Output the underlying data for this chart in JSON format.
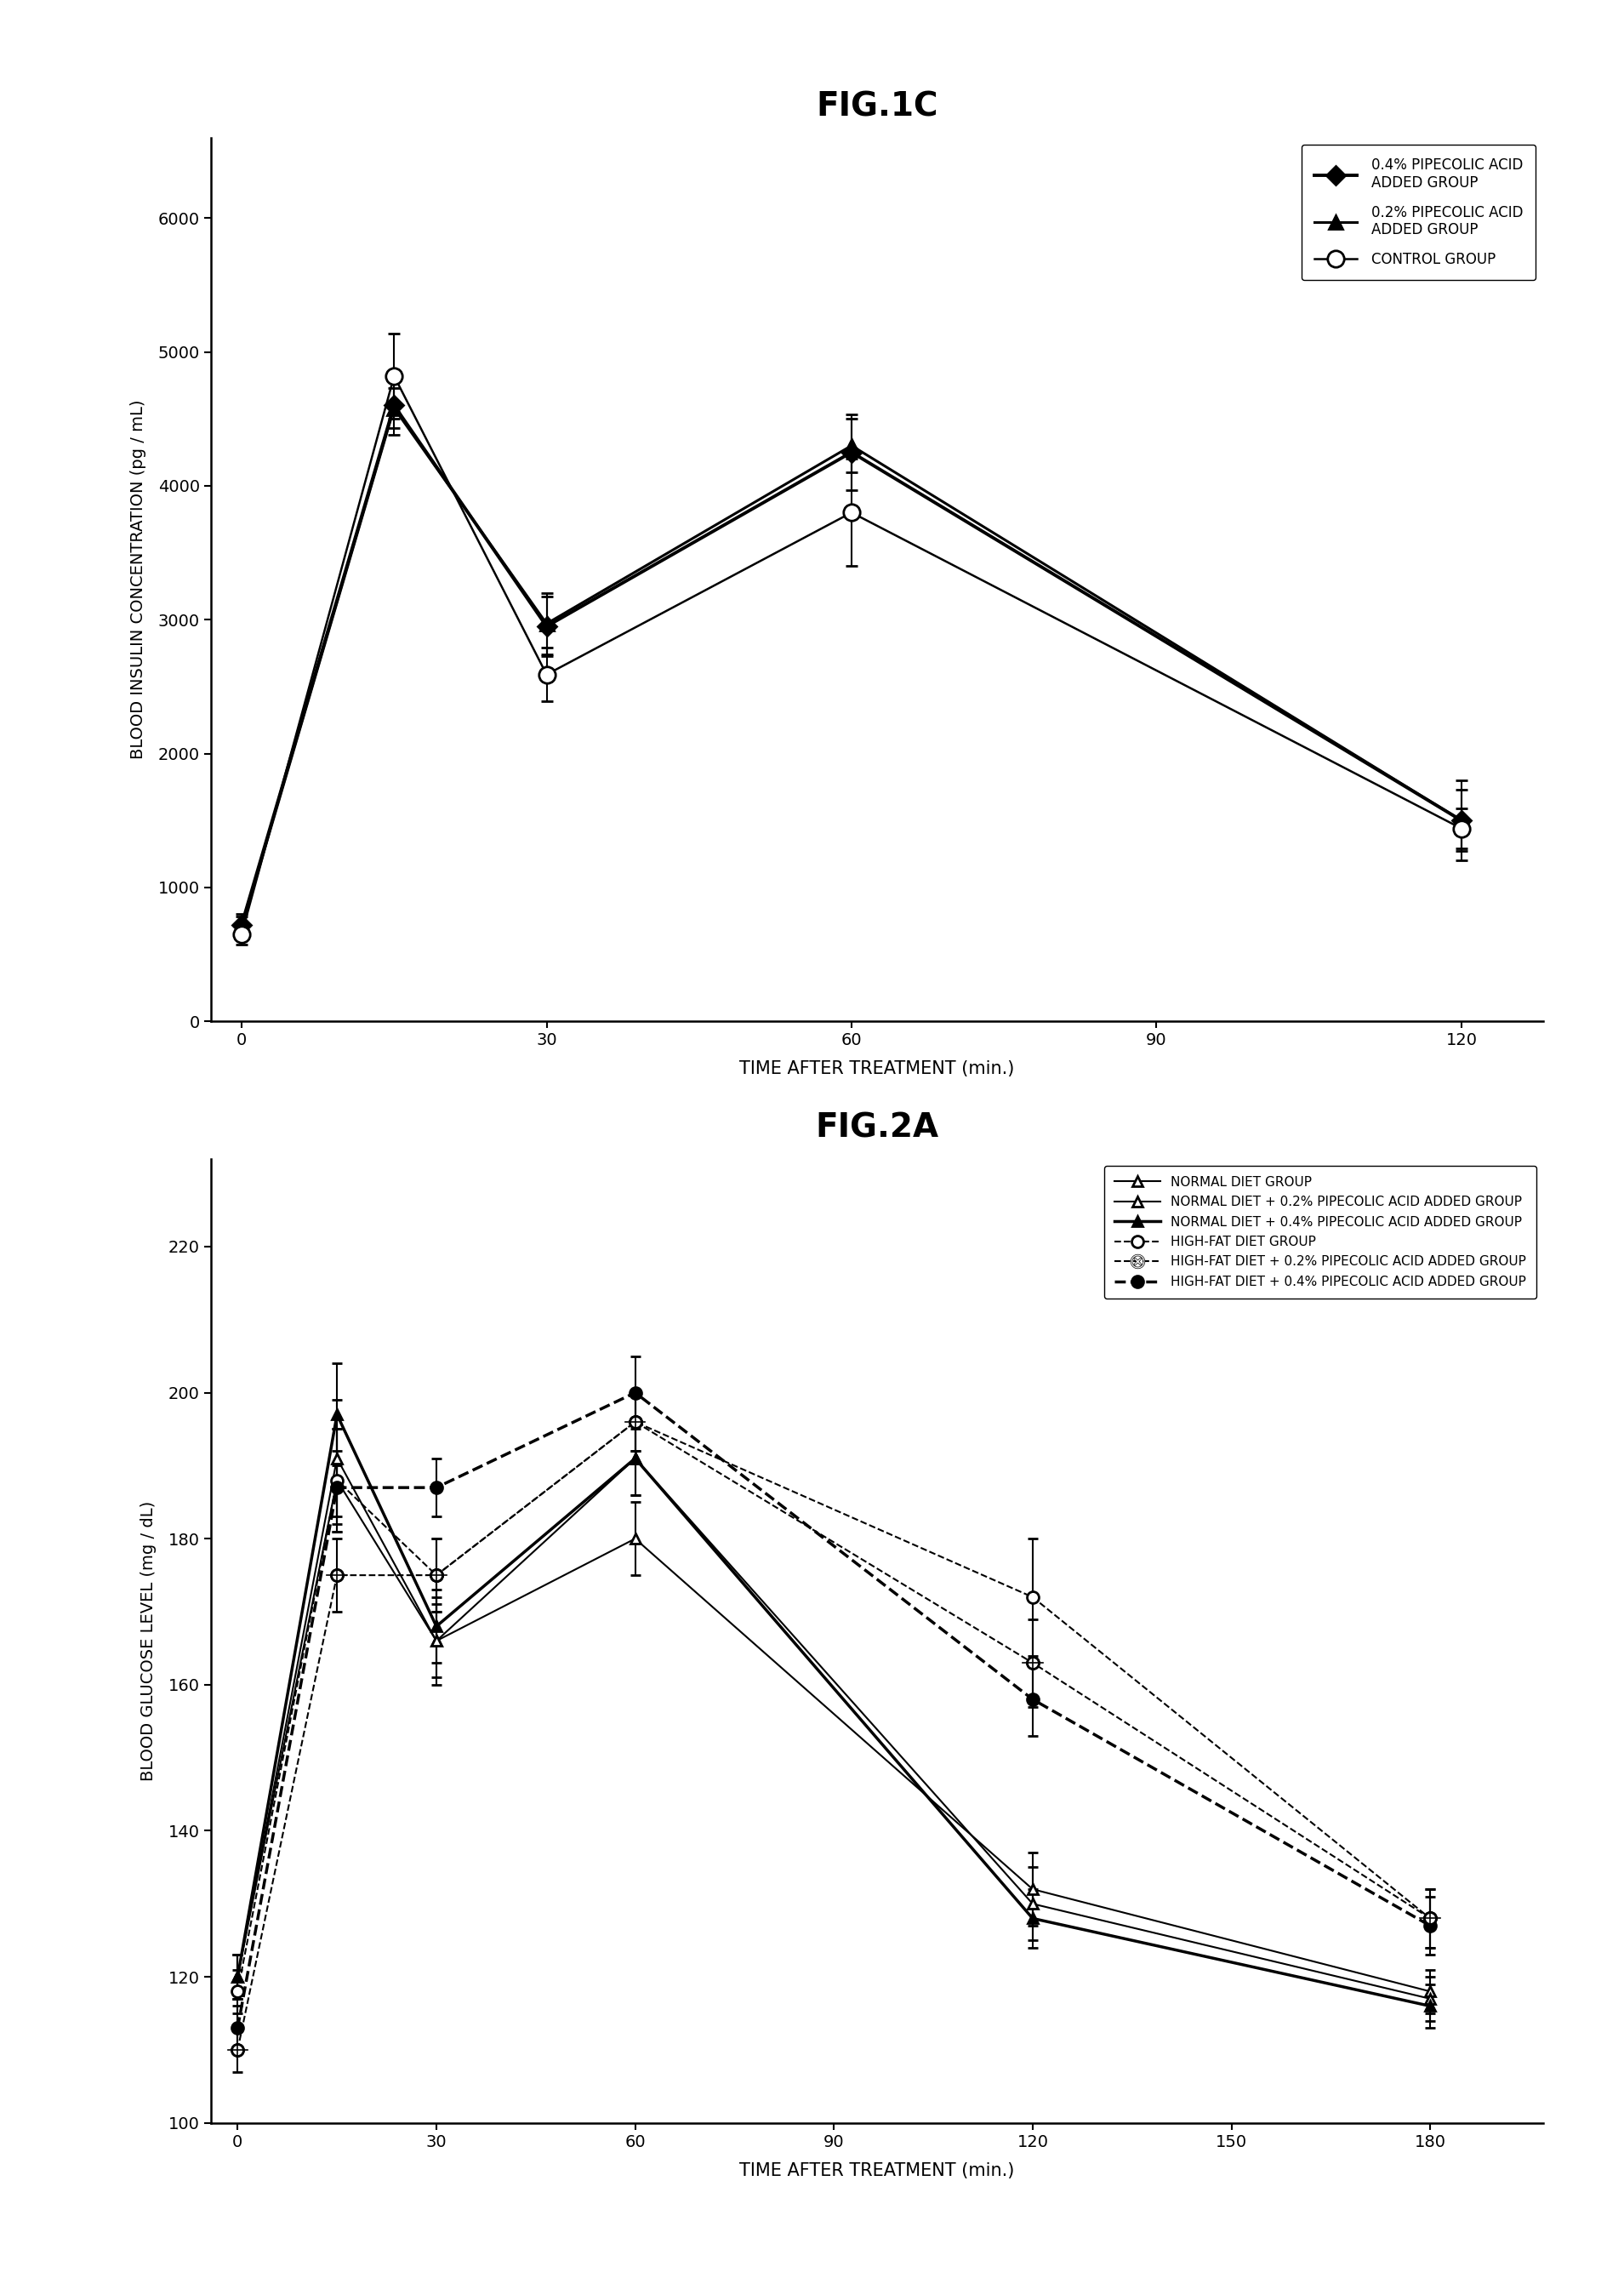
{
  "fig1c": {
    "title": "FIG.1C",
    "xlabel": "TIME AFTER TREATMENT (min.)",
    "ylabel": "BLOOD INSULIN CONCENTRATION (pg / mL)",
    "xlim": [
      -3,
      128
    ],
    "ylim": [
      0,
      6600
    ],
    "xticks": [
      0,
      30,
      60,
      90,
      120
    ],
    "yticks": [
      0,
      1000,
      2000,
      3000,
      4000,
      5000,
      6000
    ],
    "series": [
      {
        "label": "0.4% PIPECOLIC ACID\nADDED GROUP",
        "x": [
          0,
          15,
          30,
          60,
          120
        ],
        "y": [
          720,
          4600,
          2950,
          4250,
          1500
        ],
        "yerr": [
          80,
          220,
          220,
          280,
          230
        ],
        "marker": "D",
        "markersize": 11,
        "linestyle": "-",
        "linewidth": 2.8,
        "color": "black",
        "fillstyle": "full"
      },
      {
        "label": "0.2% PIPECOLIC ACID\nADDED GROUP",
        "x": [
          0,
          15,
          30,
          60,
          120
        ],
        "y": [
          700,
          4580,
          2970,
          4300,
          1500
        ],
        "yerr": [
          80,
          150,
          230,
          200,
          300
        ],
        "marker": "^",
        "markersize": 11,
        "linestyle": "-",
        "linewidth": 2.2,
        "color": "black",
        "fillstyle": "full"
      },
      {
        "label": "CONTROL GROUP",
        "x": [
          0,
          15,
          30,
          60,
          120
        ],
        "y": [
          650,
          4820,
          2590,
          3800,
          1440
        ],
        "yerr": [
          80,
          320,
          200,
          400,
          150
        ],
        "marker": "o",
        "markersize": 14,
        "linestyle": "-",
        "linewidth": 1.8,
        "color": "black",
        "fillstyle": "none"
      }
    ]
  },
  "fig2a": {
    "title": "FIG.2A",
    "xlabel": "TIME AFTER TREATMENT (min.)",
    "ylabel": "BLOOD GLUCOSE LEVEL (mg / dL)",
    "xlim": [
      -4,
      197
    ],
    "ylim": [
      100,
      232
    ],
    "xticks": [
      0,
      30,
      60,
      90,
      120,
      150,
      180
    ],
    "yticks": [
      100,
      120,
      140,
      160,
      180,
      200,
      220
    ],
    "series": [
      {
        "label": "NORMAL DIET GROUP",
        "x": [
          0,
          15,
          30,
          60,
          120,
          180
        ],
        "y": [
          120,
          191,
          166,
          180,
          132,
          118
        ],
        "yerr": [
          3,
          8,
          6,
          5,
          5,
          3
        ],
        "marker": "^",
        "markersize": 9,
        "linestyle": "-",
        "linewidth": 1.5,
        "color": "black",
        "fillstyle": "none",
        "hatch_marker": false
      },
      {
        "label": "NORMAL DIET + 0.2% PIPECOLIC ACID ADDED GROUP",
        "x": [
          0,
          15,
          30,
          60,
          120,
          180
        ],
        "y": [
          120,
          188,
          166,
          191,
          130,
          117
        ],
        "yerr": [
          3,
          7,
          5,
          5,
          5,
          3
        ],
        "marker": "^",
        "markersize": 9,
        "linestyle": "-",
        "linewidth": 1.5,
        "color": "black",
        "fillstyle": "none",
        "hatch_marker": false
      },
      {
        "label": "NORMAL DIET + 0.4% PIPECOLIC ACID ADDED GROUP",
        "x": [
          0,
          15,
          30,
          60,
          120,
          180
        ],
        "y": [
          120,
          197,
          168,
          191,
          128,
          116
        ],
        "yerr": [
          3,
          7,
          5,
          5,
          4,
          3
        ],
        "marker": "^",
        "markersize": 9,
        "linestyle": "-",
        "linewidth": 2.5,
        "color": "black",
        "fillstyle": "full",
        "hatch_marker": false
      },
      {
        "label": "HIGH-FAT DIET GROUP",
        "x": [
          0,
          15,
          30,
          60,
          120,
          180
        ],
        "y": [
          118,
          188,
          175,
          196,
          172,
          128
        ],
        "yerr": [
          3,
          7,
          5,
          4,
          8,
          4
        ],
        "marker": "o",
        "markersize": 10,
        "linestyle": "--",
        "linewidth": 1.5,
        "color": "black",
        "fillstyle": "none",
        "hatch_marker": false
      },
      {
        "label": "HIGH-FAT DIET + 0.2% PIPECOLIC ACID ADDED GROUP",
        "x": [
          0,
          15,
          30,
          60,
          120,
          180
        ],
        "y": [
          110,
          175,
          175,
          196,
          163,
          128
        ],
        "yerr": [
          3,
          5,
          5,
          4,
          6,
          4
        ],
        "marker": "o",
        "markersize": 10,
        "linestyle": "--",
        "linewidth": 1.5,
        "color": "black",
        "fillstyle": "none",
        "hatch_marker": true
      },
      {
        "label": "HIGH-FAT DIET + 0.4% PIPECOLIC ACID ADDED GROUP",
        "x": [
          0,
          15,
          30,
          60,
          120,
          180
        ],
        "y": [
          113,
          187,
          187,
          200,
          158,
          127
        ],
        "yerr": [
          3,
          5,
          4,
          5,
          5,
          4
        ],
        "marker": "o",
        "markersize": 10,
        "linestyle": "--",
        "linewidth": 2.5,
        "color": "black",
        "fillstyle": "full",
        "hatch_marker": false
      }
    ]
  }
}
